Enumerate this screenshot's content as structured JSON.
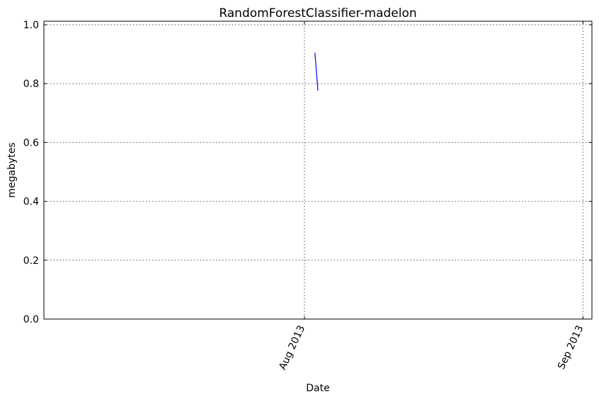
{
  "chart_data": {
    "type": "line",
    "title": "RandomForestClassifier-madelon",
    "xlabel": "Date",
    "ylabel": "megabytes",
    "x_axis_type": "date",
    "xlim": [
      "2013-07-03",
      "2013-09-02"
    ],
    "ylim": [
      0,
      1.012
    ],
    "grid": true,
    "legend": "none",
    "y_ticks": [
      {
        "value": 0.0,
        "label": "0.0"
      },
      {
        "value": 0.2,
        "label": "0.2"
      },
      {
        "value": 0.4,
        "label": "0.4"
      },
      {
        "value": 0.6,
        "label": "0.6"
      },
      {
        "value": 0.8,
        "label": "0.8"
      },
      {
        "value": 1.0,
        "label": "1.0"
      }
    ],
    "x_ticks": [
      {
        "value": "2013-08-01",
        "label": "Aug 2013"
      },
      {
        "value": "2013-09-01",
        "label": "Sep 2013"
      }
    ],
    "series": [
      {
        "color": "#0000ff",
        "points": [
          {
            "x": "2013-08-02T04:00",
            "y": 0.905
          },
          {
            "x": "2013-08-02T12:00",
            "y": 0.777
          }
        ]
      }
    ]
  }
}
